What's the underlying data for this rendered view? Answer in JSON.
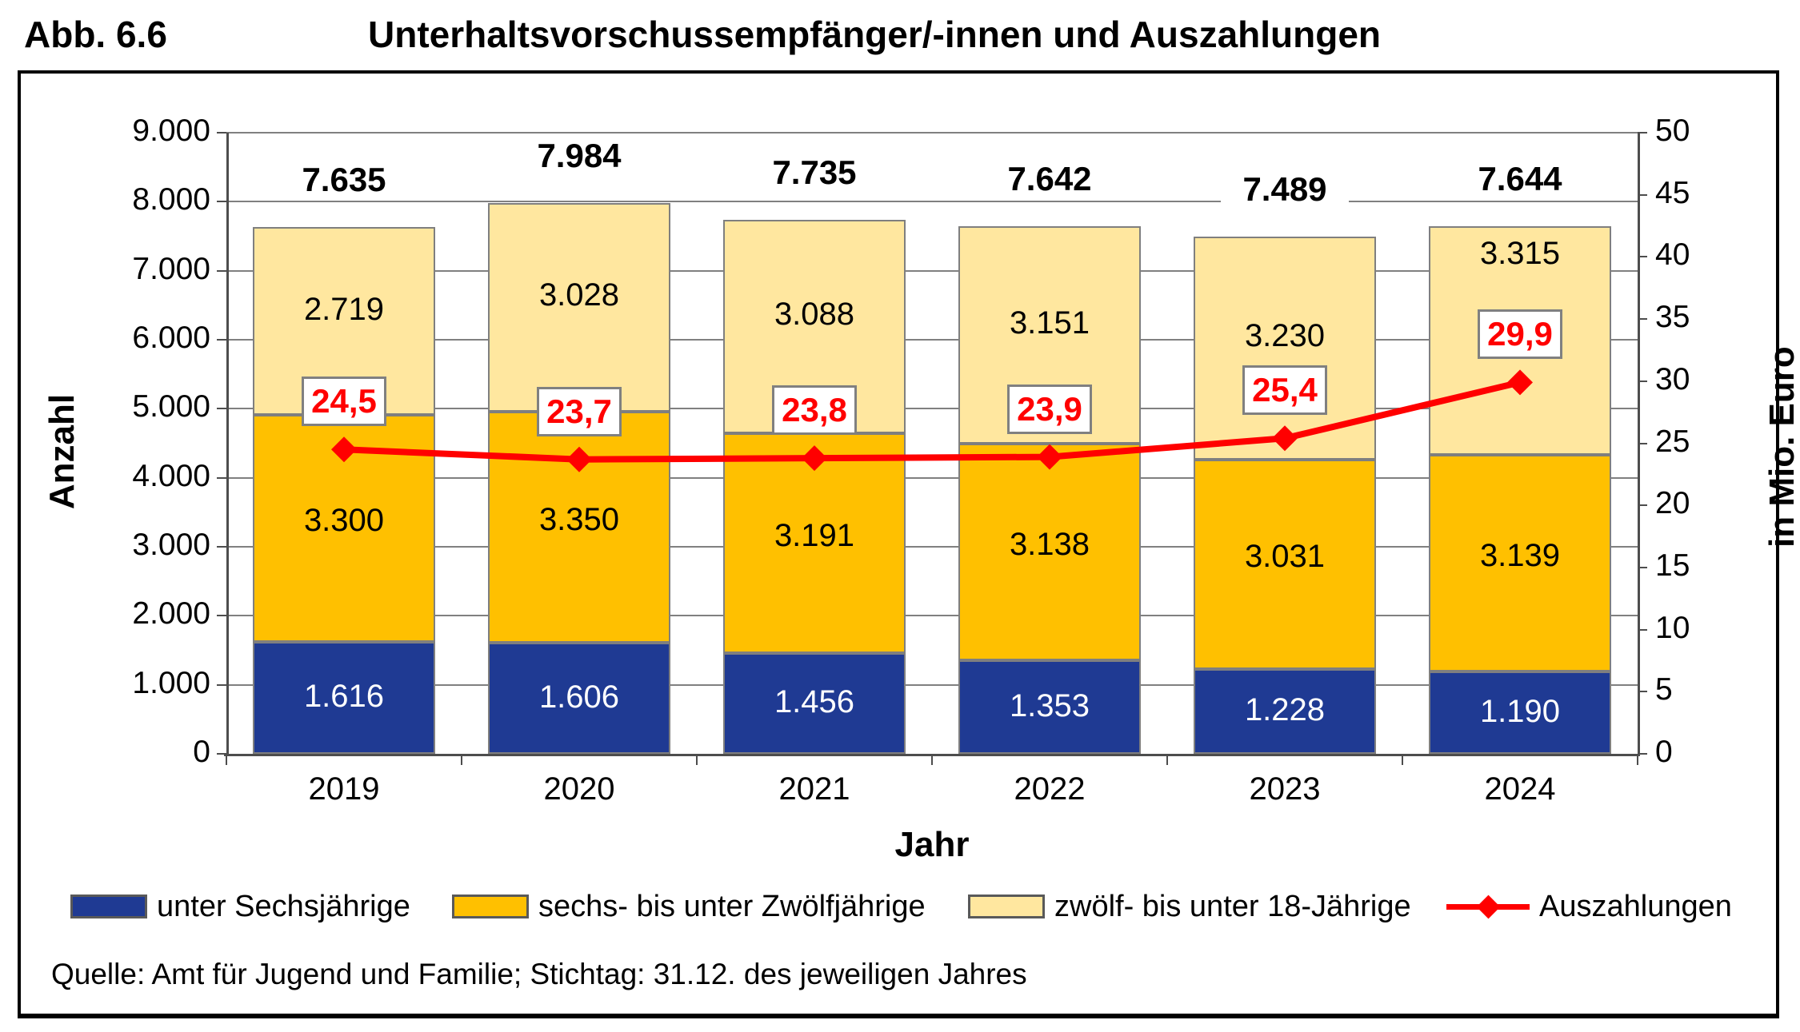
{
  "title": {
    "label": "Abb. 6.6",
    "text": "Unterhaltsvorschussempfänger/-innen und Auszahlungen"
  },
  "chart_data": {
    "type": "bar",
    "subtype": "stacked-bars-with-secondary-axis-line",
    "categories": [
      "2019",
      "2020",
      "2021",
      "2022",
      "2023",
      "2024"
    ],
    "series": [
      {
        "name": "unter Sechsjährige",
        "color": "#1F3A93",
        "values": [
          1616,
          1606,
          1456,
          1353,
          1228,
          1190
        ],
        "labels": [
          "1.616",
          "1.606",
          "1.456",
          "1.353",
          "1.228",
          "1.190"
        ]
      },
      {
        "name": "sechs- bis unter Zwölfjährige",
        "color": "#FFC000",
        "values": [
          3300,
          3350,
          3191,
          3138,
          3031,
          3139
        ],
        "labels": [
          "3.300",
          "3.350",
          "3.191",
          "3.138",
          "3.031",
          "3.139"
        ]
      },
      {
        "name": "zwölf- bis unter 18-Jährige",
        "color": "#FFE79F",
        "values": [
          2719,
          3028,
          3088,
          3151,
          3230,
          3315
        ],
        "labels": [
          "2.719",
          "3.028",
          "3.088",
          "3.151",
          "3.230",
          "3.315"
        ]
      }
    ],
    "totals": {
      "values": [
        7635,
        7984,
        7735,
        7642,
        7489,
        7644
      ],
      "labels": [
        "7.635",
        "7.984",
        "7.735",
        "7.642",
        "7.489",
        "7.644"
      ]
    },
    "line_series": {
      "name": "Auszahlungen",
      "color": "#FF0000",
      "values": [
        24.5,
        23.7,
        23.8,
        23.9,
        25.4,
        29.9
      ],
      "labels": [
        "24,5",
        "23,7",
        "23,8",
        "23,9",
        "25,4",
        "29,9"
      ]
    },
    "axes": {
      "left": {
        "title": "Anzahl",
        "min": 0,
        "max": 9000,
        "step": 1000,
        "tick_labels": [
          "0",
          "1.000",
          "2.000",
          "3.000",
          "4.000",
          "5.000",
          "6.000",
          "7.000",
          "8.000",
          "9.000"
        ]
      },
      "right": {
        "title": "in Mio. Euro",
        "min": 0,
        "max": 50,
        "step": 5,
        "tick_labels": [
          "0",
          "5",
          "10",
          "15",
          "20",
          "25",
          "30",
          "35",
          "40",
          "45",
          "50"
        ]
      },
      "x": {
        "title": "Jahr"
      }
    },
    "grid": true,
    "legend_position": "bottom"
  },
  "source": "Quelle: Amt für Jugend und Familie; Stichtag: 31.12. des jeweiligen Jahres",
  "colors": {
    "grid": "#808080",
    "axis": "#4d4d4d",
    "bar_border": "#7F7F7F",
    "payout_red": "#FF0000",
    "label_box_border": "#808080"
  }
}
